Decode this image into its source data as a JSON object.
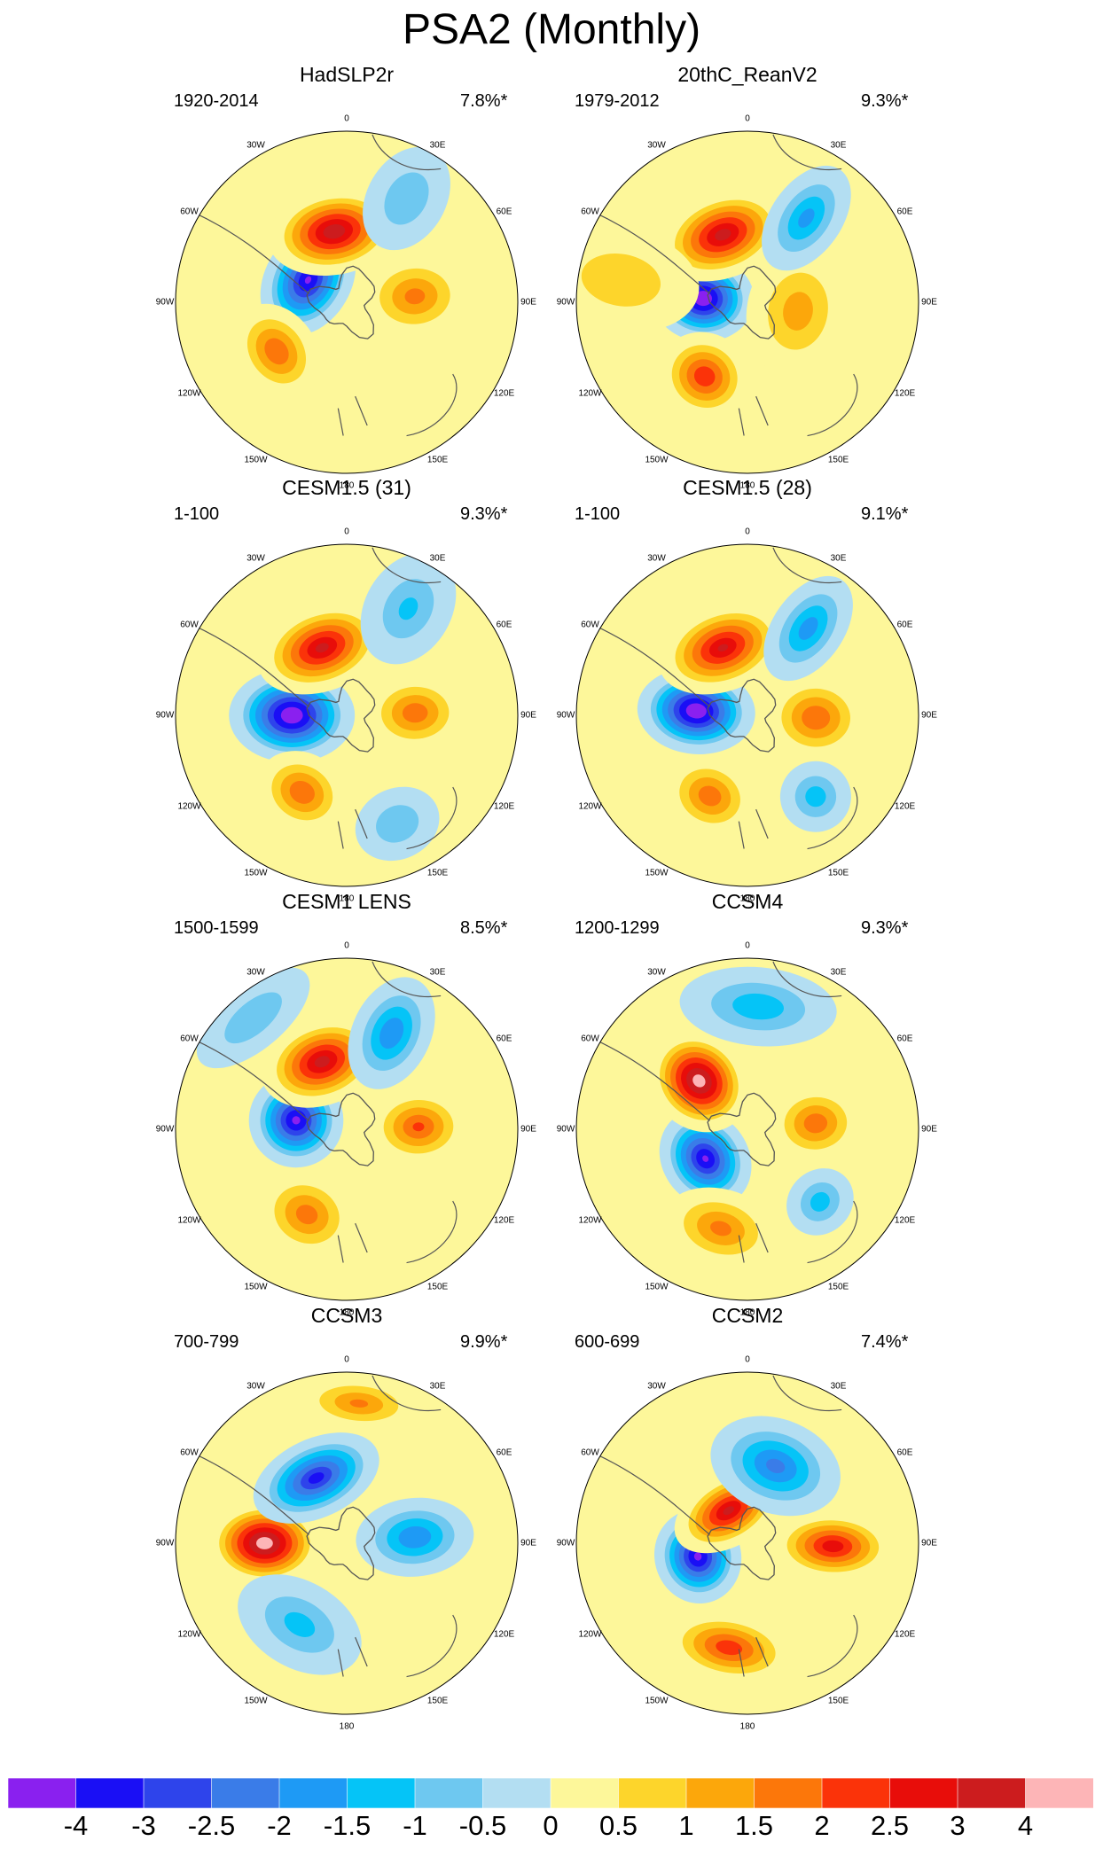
{
  "figure": {
    "title": "PSA2 (Monthly)"
  },
  "longitude_labels": [
    "0",
    "30E",
    "60E",
    "90E",
    "120E",
    "150E",
    "180",
    "150W",
    "120W",
    "90W",
    "60W",
    "30W"
  ],
  "palette": [
    "#8a20ef",
    "#1a0ff5",
    "#2e44eb",
    "#3a7ce8",
    "#1e9af5",
    "#05c4f7",
    "#6ec8f0",
    "#b3def2",
    "#fdf79a",
    "#fdd52b",
    "#fca70b",
    "#fc770a",
    "#fb3309",
    "#e80d0a",
    "#cc1c1e",
    "#fdb5b7"
  ],
  "colorbar": {
    "labels": [
      "-4",
      "-3",
      "-2.5",
      "-2",
      "-1.5",
      "-1",
      "-0.5",
      "0",
      "0.5",
      "1",
      "1.5",
      "2",
      "2.5",
      "3",
      "4"
    ]
  },
  "panels": [
    {
      "title": "HadSLP2r",
      "period": "1920-2014",
      "variance": "7.8%*",
      "anomalies": [
        {
          "lon": 240,
          "r": 0.26,
          "v": -3.6,
          "rx": 0.3,
          "ry": 0.22
        },
        {
          "lon": 190,
          "r": 0.42,
          "v": 3.4,
          "rx": 0.34,
          "ry": 0.22
        },
        {
          "lon": 305,
          "r": 0.5,
          "v": 1.9,
          "rx": 0.26,
          "ry": 0.2
        },
        {
          "lon": 95,
          "r": 0.4,
          "v": 1.6,
          "rx": 0.22,
          "ry": 0.28
        },
        {
          "lon": 150,
          "r": 0.7,
          "v": -0.9,
          "rx": 0.2,
          "ry": 0.28
        }
      ]
    },
    {
      "title": "20thC_ReanV2",
      "period": "1979-2012",
      "variance": "9.3%*",
      "anomalies": [
        {
          "lon": 265,
          "r": 0.26,
          "v": -4.2,
          "rx": 0.22,
          "ry": 0.26
        },
        {
          "lon": 200,
          "r": 0.42,
          "v": 3.2,
          "rx": 0.34,
          "ry": 0.22
        },
        {
          "lon": 330,
          "r": 0.5,
          "v": 2.4,
          "rx": 0.24,
          "ry": 0.22
        },
        {
          "lon": 80,
          "r": 0.3,
          "v": 1.2,
          "rx": 0.34,
          "ry": 0.26
        },
        {
          "lon": 145,
          "r": 0.6,
          "v": -1.6,
          "rx": 0.18,
          "ry": 0.3
        },
        {
          "lon": 260,
          "r": 0.75,
          "v": 0.9,
          "rx": 0.26,
          "ry": 0.4
        }
      ]
    },
    {
      "title": "CESM1.5 (31)",
      "period": "1-100",
      "variance": "9.3%*",
      "anomalies": [
        {
          "lon": 270,
          "r": 0.32,
          "v": -4.2,
          "rx": 0.24,
          "ry": 0.32
        },
        {
          "lon": 200,
          "r": 0.42,
          "v": 3.1,
          "rx": 0.34,
          "ry": 0.22
        },
        {
          "lon": 330,
          "r": 0.52,
          "v": 1.9,
          "rx": 0.24,
          "ry": 0.2
        },
        {
          "lon": 92,
          "r": 0.4,
          "v": 1.8,
          "rx": 0.2,
          "ry": 0.26
        },
        {
          "lon": 150,
          "r": 0.72,
          "v": -1.0,
          "rx": 0.22,
          "ry": 0.3
        },
        {
          "lon": 25,
          "r": 0.7,
          "v": -0.9,
          "rx": 0.22,
          "ry": 0.18
        }
      ]
    },
    {
      "title": "CESM1.5 (28)",
      "period": "1-100",
      "variance": "9.1%*",
      "anomalies": [
        {
          "lon": 265,
          "r": 0.3,
          "v": -4.2,
          "rx": 0.22,
          "ry": 0.3
        },
        {
          "lon": 200,
          "r": 0.42,
          "v": 3.0,
          "rx": 0.34,
          "ry": 0.22
        },
        {
          "lon": 335,
          "r": 0.52,
          "v": 1.8,
          "rx": 0.24,
          "ry": 0.2
        },
        {
          "lon": 88,
          "r": 0.4,
          "v": 1.9,
          "rx": 0.22,
          "ry": 0.26
        },
        {
          "lon": 145,
          "r": 0.62,
          "v": -1.7,
          "rx": 0.18,
          "ry": 0.3
        },
        {
          "lon": 40,
          "r": 0.62,
          "v": -1.2,
          "rx": 0.18,
          "ry": 0.18
        }
      ]
    },
    {
      "title": "CESM1 LENS",
      "period": "1500-1599",
      "variance": "8.5%*",
      "anomalies": [
        {
          "lon": 260,
          "r": 0.3,
          "v": -3.7,
          "rx": 0.24,
          "ry": 0.24
        },
        {
          "lon": 200,
          "r": 0.42,
          "v": 3.2,
          "rx": 0.32,
          "ry": 0.22
        },
        {
          "lon": 335,
          "r": 0.55,
          "v": 1.7,
          "rx": 0.26,
          "ry": 0.22
        },
        {
          "lon": 92,
          "r": 0.42,
          "v": 2.0,
          "rx": 0.2,
          "ry": 0.26
        },
        {
          "lon": 155,
          "r": 0.62,
          "v": -1.9,
          "rx": 0.2,
          "ry": 0.3
        },
        {
          "lon": 220,
          "r": 0.85,
          "v": -0.9,
          "rx": 0.35,
          "ry": 0.16
        }
      ]
    },
    {
      "title": "CCSM4",
      "period": "1200-1299",
      "variance": "9.3%*",
      "anomalies": [
        {
          "lon": 305,
          "r": 0.3,
          "v": -3.6,
          "rx": 0.26,
          "ry": 0.22
        },
        {
          "lon": 225,
          "r": 0.4,
          "v": 3.9,
          "rx": 0.24,
          "ry": 0.28
        },
        {
          "lon": 345,
          "r": 0.6,
          "v": 1.6,
          "rx": 0.3,
          "ry": 0.2
        },
        {
          "lon": 95,
          "r": 0.4,
          "v": 1.8,
          "rx": 0.2,
          "ry": 0.24
        },
        {
          "lon": 175,
          "r": 0.72,
          "v": -1.3,
          "rx": 0.4,
          "ry": 0.2
        },
        {
          "lon": 45,
          "r": 0.6,
          "v": -1.2,
          "rx": 0.18,
          "ry": 0.16
        }
      ]
    },
    {
      "title": "CCSM3",
      "period": "700-799",
      "variance": "9.9%*",
      "anomalies": [
        {
          "lon": 270,
          "r": 0.48,
          "v": 4.0,
          "rx": 0.22,
          "ry": 0.3
        },
        {
          "lon": 205,
          "r": 0.42,
          "v": -3.2,
          "rx": 0.34,
          "ry": 0.2
        },
        {
          "lon": 330,
          "r": 0.55,
          "v": -1.1,
          "rx": 0.34,
          "ry": 0.22
        },
        {
          "lon": 95,
          "r": 0.4,
          "v": -1.9,
          "rx": 0.2,
          "ry": 0.3
        },
        {
          "lon": 175,
          "r": 0.82,
          "v": 1.5,
          "rx": 0.32,
          "ry": 0.14
        }
      ]
    },
    {
      "title": "CCSM2",
      "period": "600-699",
      "variance": "7.4%*",
      "anomalies": [
        {
          "lon": 285,
          "r": 0.3,
          "v": -3.7,
          "rx": 0.24,
          "ry": 0.22
        },
        {
          "lon": 210,
          "r": 0.22,
          "v": 3.1,
          "rx": 0.3,
          "ry": 0.18
        },
        {
          "lon": 350,
          "r": 0.62,
          "v": 2.3,
          "rx": 0.34,
          "ry": 0.18
        },
        {
          "lon": 88,
          "r": 0.5,
          "v": 2.8,
          "rx": 0.18,
          "ry": 0.32
        },
        {
          "lon": 160,
          "r": 0.48,
          "v": -2.1,
          "rx": 0.34,
          "ry": 0.24
        }
      ]
    }
  ]
}
